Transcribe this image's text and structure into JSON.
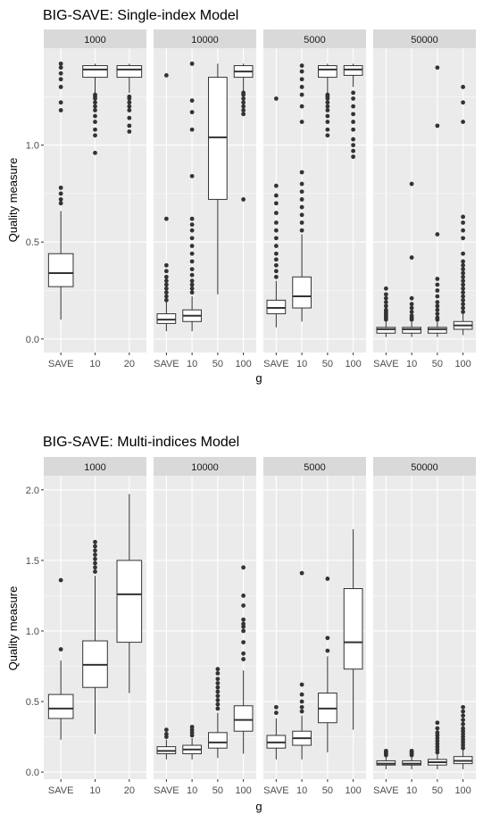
{
  "colors": {
    "panel_bg": "#ebebeb",
    "strip_bg": "#d9d9d9",
    "grid_major": "#ffffff",
    "box_fill": "#ffffff",
    "box_line": "#333333",
    "outlier": "#333333"
  },
  "chart_data": [
    {
      "type": "boxplot",
      "title": "BIG-SAVE: Single-index Model",
      "xlabel": "g",
      "ylabel": "Quality measure",
      "ylim": [
        -0.07,
        1.5
      ],
      "yticks": [
        0.0,
        0.5,
        1.0
      ],
      "ytick_labels": [
        "0.0",
        "0.5",
        "1.0"
      ],
      "grid": true,
      "facets": [
        {
          "label": "1000",
          "categories": [
            "SAVE",
            "10",
            "20"
          ],
          "boxes": [
            {
              "q1": 0.27,
              "median": 0.34,
              "q3": 0.44,
              "whisker_low": 0.1,
              "whisker_high": 0.66,
              "outliers": [
                0.7,
                0.72,
                0.75,
                0.78,
                1.18,
                1.22,
                1.3,
                1.34,
                1.37,
                1.4,
                1.42
              ]
            },
            {
              "q1": 1.35,
              "median": 1.39,
              "q3": 1.41,
              "whisker_low": 1.27,
              "whisker_high": 1.42,
              "outliers": [
                0.96,
                1.05,
                1.08,
                1.12,
                1.15,
                1.18,
                1.2,
                1.22,
                1.24,
                1.25,
                1.26
              ]
            },
            {
              "q1": 1.35,
              "median": 1.39,
              "q3": 1.41,
              "whisker_low": 1.27,
              "whisker_high": 1.42,
              "outliers": [
                1.07,
                1.1,
                1.14,
                1.18,
                1.2,
                1.22,
                1.24,
                1.25
              ]
            }
          ]
        },
        {
          "label": "10000",
          "categories": [
            "SAVE",
            "10",
            "50",
            "100"
          ],
          "boxes": [
            {
              "q1": 0.08,
              "median": 0.1,
              "q3": 0.13,
              "whisker_low": 0.04,
              "whisker_high": 0.19,
              "outliers": [
                0.2,
                0.22,
                0.24,
                0.26,
                0.28,
                0.3,
                0.32,
                0.35,
                0.38,
                0.62,
                1.36
              ]
            },
            {
              "q1": 0.09,
              "median": 0.12,
              "q3": 0.15,
              "whisker_low": 0.04,
              "whisker_high": 0.22,
              "outliers": [
                0.24,
                0.26,
                0.28,
                0.3,
                0.33,
                0.36,
                0.4,
                0.44,
                0.48,
                0.52,
                0.56,
                0.59,
                0.62,
                0.84,
                1.08,
                1.17,
                1.23,
                1.42
              ]
            },
            {
              "q1": 0.72,
              "median": 1.04,
              "q3": 1.35,
              "whisker_low": 0.23,
              "whisker_high": 1.42,
              "outliers": []
            },
            {
              "q1": 1.35,
              "median": 1.38,
              "q3": 1.41,
              "whisker_low": 1.28,
              "whisker_high": 1.42,
              "outliers": [
                0.72,
                1.16,
                1.18,
                1.2,
                1.22,
                1.24,
                1.26,
                1.27
              ]
            }
          ]
        },
        {
          "label": "5000",
          "categories": [
            "SAVE",
            "10",
            "50",
            "100"
          ],
          "boxes": [
            {
              "q1": 0.13,
              "median": 0.16,
              "q3": 0.2,
              "whisker_low": 0.06,
              "whisker_high": 0.3,
              "outliers": [
                0.32,
                0.35,
                0.38,
                0.41,
                0.44,
                0.48,
                0.52,
                0.56,
                0.6,
                0.65,
                0.7,
                0.74,
                0.79,
                1.24
              ]
            },
            {
              "q1": 0.16,
              "median": 0.22,
              "q3": 0.32,
              "whisker_low": 0.09,
              "whisker_high": 0.54,
              "outliers": [
                0.56,
                0.6,
                0.64,
                0.68,
                0.72,
                0.76,
                0.8,
                0.86,
                1.12,
                1.2,
                1.26,
                1.3,
                1.34,
                1.38,
                1.41
              ]
            },
            {
              "q1": 1.35,
              "median": 1.39,
              "q3": 1.41,
              "whisker_low": 1.27,
              "whisker_high": 1.42,
              "outliers": [
                1.05,
                1.08,
                1.12,
                1.15,
                1.18,
                1.2,
                1.22,
                1.24,
                1.25,
                1.26
              ]
            },
            {
              "q1": 1.36,
              "median": 1.39,
              "q3": 1.41,
              "whisker_low": 1.3,
              "whisker_high": 1.42,
              "outliers": [
                0.94,
                0.97,
                1.0,
                1.03,
                1.08,
                1.12,
                1.16,
                1.2,
                1.24,
                1.27
              ]
            }
          ]
        },
        {
          "label": "50000",
          "categories": [
            "SAVE",
            "10",
            "50",
            "100"
          ],
          "boxes": [
            {
              "q1": 0.03,
              "median": 0.05,
              "q3": 0.06,
              "whisker_low": 0.01,
              "whisker_high": 0.09,
              "outliers": [
                0.1,
                0.11,
                0.12,
                0.13,
                0.14,
                0.15,
                0.17,
                0.19,
                0.21,
                0.23,
                0.26
              ]
            },
            {
              "q1": 0.03,
              "median": 0.05,
              "q3": 0.06,
              "whisker_low": 0.01,
              "whisker_high": 0.09,
              "outliers": [
                0.1,
                0.11,
                0.12,
                0.14,
                0.16,
                0.18,
                0.21,
                0.42,
                0.8
              ]
            },
            {
              "q1": 0.03,
              "median": 0.05,
              "q3": 0.06,
              "whisker_low": 0.01,
              "whisker_high": 0.09,
              "outliers": [
                0.1,
                0.11,
                0.13,
                0.15,
                0.17,
                0.19,
                0.22,
                0.25,
                0.28,
                0.31,
                0.54,
                1.1,
                1.4
              ]
            },
            {
              "q1": 0.05,
              "median": 0.07,
              "q3": 0.09,
              "whisker_low": 0.02,
              "whisker_high": 0.13,
              "outliers": [
                0.14,
                0.16,
                0.18,
                0.2,
                0.22,
                0.24,
                0.26,
                0.28,
                0.3,
                0.32,
                0.34,
                0.36,
                0.38,
                0.4,
                0.44,
                0.52,
                0.56,
                0.6,
                0.63,
                1.12,
                1.22,
                1.3
              ]
            }
          ]
        }
      ]
    },
    {
      "type": "boxplot",
      "title": "BIG-SAVE: Multi-indices Model",
      "xlabel": "g",
      "ylabel": "Quality measure",
      "ylim": [
        -0.05,
        2.1
      ],
      "yticks": [
        0.0,
        0.5,
        1.0,
        1.5,
        2.0
      ],
      "ytick_labels": [
        "0.0",
        "0.5",
        "1.0",
        "1.5",
        "2.0"
      ],
      "grid": true,
      "facets": [
        {
          "label": "1000",
          "categories": [
            "SAVE",
            "10",
            "20"
          ],
          "boxes": [
            {
              "q1": 0.38,
              "median": 0.45,
              "q3": 0.55,
              "whisker_low": 0.23,
              "whisker_high": 0.79,
              "outliers": [
                0.87,
                1.36
              ]
            },
            {
              "q1": 0.6,
              "median": 0.76,
              "q3": 0.93,
              "whisker_low": 0.27,
              "whisker_high": 1.39,
              "outliers": [
                1.42,
                1.45,
                1.48,
                1.51,
                1.54,
                1.57,
                1.6,
                1.63
              ]
            },
            {
              "q1": 0.92,
              "median": 1.26,
              "q3": 1.5,
              "whisker_low": 0.56,
              "whisker_high": 1.97,
              "outliers": []
            }
          ]
        },
        {
          "label": "10000",
          "categories": [
            "SAVE",
            "10",
            "50",
            "100"
          ],
          "boxes": [
            {
              "q1": 0.13,
              "median": 0.15,
              "q3": 0.18,
              "whisker_low": 0.09,
              "whisker_high": 0.23,
              "outliers": [
                0.25,
                0.27,
                0.3
              ]
            },
            {
              "q1": 0.13,
              "median": 0.16,
              "q3": 0.19,
              "whisker_low": 0.09,
              "whisker_high": 0.24,
              "outliers": [
                0.26,
                0.28,
                0.3,
                0.32
              ]
            },
            {
              "q1": 0.17,
              "median": 0.21,
              "q3": 0.28,
              "whisker_low": 0.1,
              "whisker_high": 0.42,
              "outliers": [
                0.45,
                0.48,
                0.51,
                0.54,
                0.57,
                0.6,
                0.63,
                0.66,
                0.7,
                0.73
              ]
            },
            {
              "q1": 0.29,
              "median": 0.37,
              "q3": 0.47,
              "whisker_low": 0.13,
              "whisker_high": 0.72,
              "outliers": [
                0.8,
                0.84,
                0.92,
                1.0,
                1.03,
                1.05,
                1.08,
                1.18,
                1.25,
                1.45
              ]
            }
          ]
        },
        {
          "label": "5000",
          "categories": [
            "SAVE",
            "10",
            "50",
            "100"
          ],
          "boxes": [
            {
              "q1": 0.17,
              "median": 0.21,
              "q3": 0.26,
              "whisker_low": 0.09,
              "whisker_high": 0.38,
              "outliers": [
                0.42,
                0.46
              ]
            },
            {
              "q1": 0.19,
              "median": 0.24,
              "q3": 0.29,
              "whisker_low": 0.09,
              "whisker_high": 0.4,
              "outliers": [
                0.43,
                0.46,
                0.5,
                0.55,
                0.62,
                1.41
              ]
            },
            {
              "q1": 0.35,
              "median": 0.45,
              "q3": 0.56,
              "whisker_low": 0.14,
              "whisker_high": 0.82,
              "outliers": [
                0.86,
                0.95,
                1.37
              ]
            },
            {
              "q1": 0.73,
              "median": 0.92,
              "q3": 1.3,
              "whisker_low": 0.3,
              "whisker_high": 1.72,
              "outliers": []
            }
          ]
        },
        {
          "label": "50000",
          "categories": [
            "SAVE",
            "10",
            "50",
            "100"
          ],
          "boxes": [
            {
              "q1": 0.05,
              "median": 0.06,
              "q3": 0.08,
              "whisker_low": 0.02,
              "whisker_high": 0.11,
              "outliers": [
                0.12,
                0.13,
                0.14,
                0.15
              ]
            },
            {
              "q1": 0.05,
              "median": 0.06,
              "q3": 0.08,
              "whisker_low": 0.02,
              "whisker_high": 0.11,
              "outliers": [
                0.12,
                0.13,
                0.14,
                0.15
              ]
            },
            {
              "q1": 0.05,
              "median": 0.07,
              "q3": 0.09,
              "whisker_low": 0.02,
              "whisker_high": 0.13,
              "outliers": [
                0.14,
                0.16,
                0.18,
                0.2,
                0.22,
                0.24,
                0.26,
                0.28,
                0.31,
                0.35
              ]
            },
            {
              "q1": 0.06,
              "median": 0.08,
              "q3": 0.11,
              "whisker_low": 0.02,
              "whisker_high": 0.16,
              "outliers": [
                0.17,
                0.19,
                0.21,
                0.23,
                0.25,
                0.27,
                0.29,
                0.31,
                0.34,
                0.37,
                0.4,
                0.43,
                0.46
              ]
            }
          ]
        }
      ]
    }
  ]
}
